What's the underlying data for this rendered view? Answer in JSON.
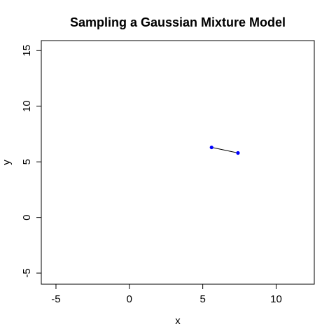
{
  "chart_data": {
    "type": "line",
    "title": "Sampling a Gaussian Mixture Model",
    "xlabel": "x",
    "ylabel": "y",
    "xlim": [
      -6,
      12.6
    ],
    "ylim": [
      -6,
      15.9
    ],
    "xticks": [
      -5,
      0,
      5,
      10
    ],
    "xtick_labels": [
      "-5",
      "0",
      "5",
      "10"
    ],
    "yticks": [
      -5,
      0,
      5,
      10,
      15
    ],
    "ytick_labels": [
      "-5",
      "0",
      "5",
      "10",
      "15"
    ],
    "grid": false,
    "series": [
      {
        "x": [
          5.6,
          7.4
        ],
        "y": [
          6.3,
          5.8
        ],
        "line_color": "#000000",
        "point_color": "#0000ff"
      }
    ]
  }
}
